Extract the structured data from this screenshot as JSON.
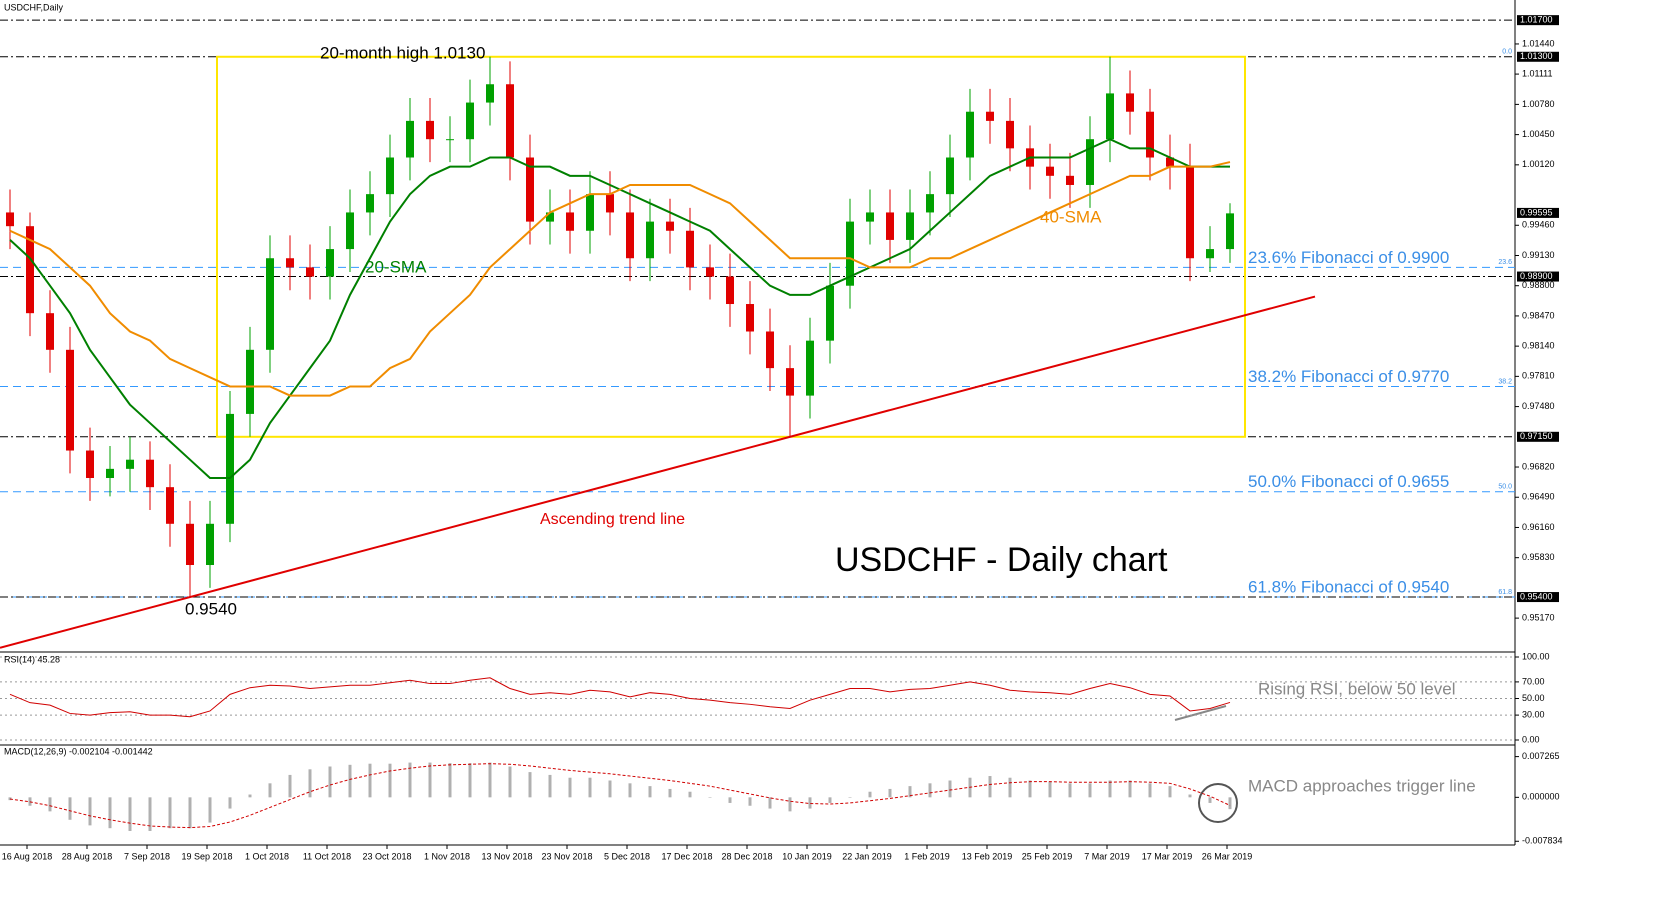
{
  "chart_data": [
    {
      "type": "candlestick",
      "title": "USDCHF,Daily",
      "subtitle": "USDCHF - Daily chart",
      "up_color": "#00a000",
      "down_color": "#e00000",
      "open": [
        0.996,
        0.9945,
        0.985,
        0.981,
        0.97,
        0.967,
        0.968,
        0.969,
        0.966,
        0.962,
        0.9575,
        0.962,
        0.974,
        0.981,
        0.991,
        0.99,
        0.989,
        0.992,
        0.996,
        0.998,
        1.002,
        1.006,
        1.004,
        1.004,
        1.008,
        1.01,
        1.002,
        0.995,
        0.996,
        0.994,
        0.998,
        0.996,
        0.991,
        0.995,
        0.994,
        0.99,
        0.989,
        0.986,
        0.983,
        0.979,
        0.976,
        0.982,
        0.988,
        0.995,
        0.996,
        0.993,
        0.996,
        0.998,
        1.002,
        1.007,
        1.006,
        1.003,
        1.001,
        1.0,
        0.999,
        1.004,
        1.009,
        1.007,
        1.002,
        1.001,
        0.991,
        0.992
      ],
      "high": [
        0.9985,
        0.996,
        0.9875,
        0.9835,
        0.9725,
        0.9705,
        0.9715,
        0.971,
        0.9685,
        0.9645,
        0.9645,
        0.9765,
        0.9835,
        0.9935,
        0.9935,
        0.9925,
        0.9945,
        0.9985,
        1.0005,
        1.0045,
        1.0085,
        1.0085,
        1.0065,
        1.0105,
        1.013,
        1.0125,
        1.0045,
        0.9985,
        0.9985,
        1.0005,
        1.0005,
        0.9985,
        0.9975,
        0.9975,
        0.9965,
        0.9925,
        0.9915,
        0.9885,
        0.9855,
        0.9815,
        0.9845,
        0.9905,
        0.9975,
        0.9985,
        0.9985,
        0.9985,
        1.0005,
        1.0045,
        1.0095,
        1.0095,
        1.0085,
        1.0055,
        1.0035,
        1.0025,
        1.0065,
        1.013,
        1.0115,
        1.0095,
        1.0045,
        1.0035,
        0.9945,
        0.997
      ],
      "low": [
        0.992,
        0.9825,
        0.9785,
        0.9675,
        0.9645,
        0.965,
        0.9655,
        0.9635,
        0.9595,
        0.954,
        0.955,
        0.96,
        0.9715,
        0.9785,
        0.9875,
        0.9865,
        0.9865,
        0.9895,
        0.9935,
        0.9955,
        0.9995,
        1.0015,
        1.0015,
        1.0015,
        1.0055,
        0.9995,
        0.9925,
        0.9925,
        0.9915,
        0.9915,
        0.9935,
        0.9885,
        0.9885,
        0.9915,
        0.9875,
        0.9865,
        0.9835,
        0.9805,
        0.9765,
        0.9715,
        0.9735,
        0.9795,
        0.9855,
        0.9925,
        0.9905,
        0.9905,
        0.9935,
        0.9955,
        0.9995,
        1.0035,
        1.0005,
        0.9985,
        0.9975,
        0.9965,
        0.9965,
        1.0015,
        1.0045,
        0.9995,
        0.9985,
        0.9885,
        0.9895,
        0.9905
      ],
      "close": [
        0.9945,
        0.985,
        0.981,
        0.97,
        0.967,
        0.968,
        0.969,
        0.966,
        0.962,
        0.9575,
        0.962,
        0.974,
        0.981,
        0.991,
        0.99,
        0.989,
        0.992,
        0.996,
        0.998,
        1.002,
        1.006,
        1.004,
        1.004,
        1.008,
        1.01,
        1.002,
        0.995,
        0.996,
        0.994,
        0.998,
        0.996,
        0.991,
        0.995,
        0.994,
        0.99,
        0.989,
        0.986,
        0.983,
        0.979,
        0.976,
        0.982,
        0.988,
        0.995,
        0.996,
        0.993,
        0.996,
        0.998,
        1.002,
        1.007,
        1.006,
        1.003,
        1.001,
        1.0,
        0.999,
        1.004,
        1.009,
        1.007,
        1.002,
        1.001,
        0.991,
        0.992,
        0.9959
      ],
      "series": [
        {
          "name": "20-SMA",
          "color": "#008000",
          "values": [
            0.993,
            0.991,
            0.988,
            0.985,
            0.981,
            0.978,
            0.975,
            0.973,
            0.971,
            0.969,
            0.967,
            0.967,
            0.969,
            0.973,
            0.976,
            0.979,
            0.982,
            0.987,
            0.991,
            0.995,
            0.998,
            1.0,
            1.001,
            1.001,
            1.002,
            1.002,
            1.001,
            1.001,
            1.0,
            1.0,
            0.999,
            0.998,
            0.997,
            0.996,
            0.995,
            0.994,
            0.992,
            0.99,
            0.988,
            0.987,
            0.987,
            0.988,
            0.989,
            0.99,
            0.991,
            0.992,
            0.994,
            0.996,
            0.998,
            1.0,
            1.001,
            1.002,
            1.002,
            1.002,
            1.003,
            1.004,
            1.003,
            1.003,
            1.002,
            1.001,
            1.001,
            1.001
          ]
        },
        {
          "name": "40-SMA",
          "color": "#f08c00",
          "values": [
            0.994,
            0.993,
            0.992,
            0.99,
            0.988,
            0.985,
            0.983,
            0.982,
            0.98,
            0.979,
            0.978,
            0.977,
            0.977,
            0.977,
            0.976,
            0.976,
            0.976,
            0.977,
            0.977,
            0.979,
            0.98,
            0.983,
            0.985,
            0.987,
            0.99,
            0.992,
            0.994,
            0.996,
            0.997,
            0.998,
            0.998,
            0.999,
            0.999,
            0.999,
            0.999,
            0.998,
            0.997,
            0.995,
            0.993,
            0.991,
            0.991,
            0.991,
            0.991,
            0.99,
            0.99,
            0.99,
            0.991,
            0.991,
            0.992,
            0.993,
            0.994,
            0.995,
            0.996,
            0.997,
            0.998,
            0.999,
            1.0,
            1.0,
            1.001,
            1.001,
            1.001,
            1.0015
          ]
        }
      ],
      "ylim": [
        0.948,
        1.0192
      ],
      "yticks": [
        {
          "value": 1.0144,
          "label": "1.01440"
        },
        {
          "value": 1.01111,
          "label": "1.01111"
        },
        {
          "value": 1.0078,
          "label": "1.00780"
        },
        {
          "value": 1.0045,
          "label": "1.00450"
        },
        {
          "value": 1.0012,
          "label": "1.00120"
        },
        {
          "value": 0.9946,
          "label": "0.99460"
        },
        {
          "value": 0.9913,
          "label": "0.99130"
        },
        {
          "value": 0.988,
          "label": "0.98800"
        },
        {
          "value": 0.9847,
          "label": "0.98470"
        },
        {
          "value": 0.9814,
          "label": "0.98140"
        },
        {
          "value": 0.9781,
          "label": "0.97810"
        },
        {
          "value": 0.9748,
          "label": "0.97480"
        },
        {
          "value": 0.9682,
          "label": "0.96820"
        },
        {
          "value": 0.9649,
          "label": "0.96490"
        },
        {
          "value": 0.9616,
          "label": "0.96160"
        },
        {
          "value": 0.9583,
          "label": "0.95830"
        },
        {
          "value": 0.9517,
          "label": "0.95170"
        }
      ],
      "hlines": [
        {
          "value": 1.017,
          "label": "1.01700"
        },
        {
          "value": 1.013,
          "label": "1.01300"
        },
        {
          "value": 0.989,
          "label": "0.98900"
        },
        {
          "value": 0.9715,
          "label": "0.97150"
        },
        {
          "value": 0.954,
          "label": "0.95400"
        }
      ],
      "last_price": {
        "value": 0.99595,
        "label": "0.99595"
      },
      "fibonacci": [
        {
          "value": 1.013,
          "tag": "0.0"
        },
        {
          "value": 0.99,
          "tag": "23.6",
          "label": "23.6% Fibonacci of 0.9900"
        },
        {
          "value": 0.977,
          "tag": "38.2",
          "label": "38.2% Fibonacci of 0.9770"
        },
        {
          "value": 0.9655,
          "tag": "50.0",
          "label": "50.0% Fibonacci of 0.9655"
        },
        {
          "value": 0.954,
          "tag": "61.8",
          "label": "61.8% Fibonacci of 0.9540"
        }
      ],
      "range_box": {
        "top": 1.013,
        "bottom": 0.9715
      },
      "trend_line": {
        "label": "Ascending trend line",
        "anchors": [
          0.954,
          0.9715
        ]
      },
      "annotations": [
        "20-month high 1.0130",
        "0.9540"
      ],
      "xticks": [
        "16 Aug 2018",
        "28 Aug 2018",
        "7 Sep 2018",
        "19 Sep 2018",
        "1 Oct 2018",
        "11 Oct 2018",
        "23 Oct 2018",
        "1 Nov 2018",
        "13 Nov 2018",
        "23 Nov 2018",
        "5 Dec 2018",
        "17 Dec 2018",
        "28 Dec 2018",
        "10 Jan 2019",
        "22 Jan 2019",
        "1 Feb 2019",
        "13 Feb 2019",
        "25 Feb 2019",
        "7 Mar 2019",
        "17 Mar 2019",
        "26 Mar 2019"
      ]
    },
    {
      "type": "line",
      "title": "RSI(14) 45.28",
      "color": "#d00000",
      "annotation": "Rising RSI, below 50 level",
      "values": [
        55,
        45,
        42,
        32,
        30,
        33,
        34,
        30,
        30,
        28,
        35,
        55,
        63,
        66,
        65,
        62,
        64,
        66,
        66,
        69,
        72,
        68,
        68,
        72,
        75,
        62,
        55,
        57,
        55,
        60,
        58,
        52,
        57,
        55,
        50,
        48,
        45,
        43,
        40,
        38,
        48,
        55,
        62,
        62,
        58,
        61,
        62,
        66,
        70,
        66,
        60,
        58,
        57,
        55,
        62,
        68,
        63,
        55,
        53,
        35,
        38,
        45.28
      ],
      "ylim": [
        0,
        100
      ],
      "yticks": [
        {
          "value": 100,
          "label": "100.00"
        },
        {
          "value": 70,
          "label": "70.00"
        },
        {
          "value": 50,
          "label": "50.00"
        },
        {
          "value": 30,
          "label": "30.00"
        },
        {
          "value": 0,
          "label": "0.00"
        }
      ]
    },
    {
      "type": "macd",
      "title": "MACD(12,26,9) -0.002104 -0.001442",
      "annotation": "MACD approaches trigger line",
      "histogram_color": "#b0b0b0",
      "signal_color": "#d00000",
      "values": [
        -0.0005,
        -0.0015,
        -0.0025,
        -0.004,
        -0.005,
        -0.0055,
        -0.006,
        -0.006,
        -0.0055,
        -0.0055,
        -0.0045,
        -0.002,
        0.0005,
        0.0025,
        0.004,
        0.005,
        0.0055,
        0.0058,
        0.006,
        0.006,
        0.0062,
        0.0062,
        0.0061,
        0.0061,
        0.0062,
        0.0055,
        0.0045,
        0.004,
        0.0035,
        0.0035,
        0.003,
        0.0025,
        0.002,
        0.0015,
        0.001,
        0,
        -0.001,
        -0.0015,
        -0.002,
        -0.0025,
        -0.002,
        -0.001,
        0,
        0.001,
        0.0015,
        0.002,
        0.0025,
        0.003,
        0.0035,
        0.0038,
        0.0035,
        0.003,
        0.0028,
        0.0025,
        0.0025,
        0.003,
        0.003,
        0.0025,
        0.002,
        0.0005,
        -0.001,
        -0.002104
      ],
      "signal": [
        -0.0003,
        -0.0008,
        -0.0015,
        -0.0024,
        -0.0033,
        -0.004,
        -0.0046,
        -0.0051,
        -0.0053,
        -0.0054,
        -0.0052,
        -0.0044,
        -0.0032,
        -0.0018,
        -0.0004,
        0.001,
        0.0022,
        0.0032,
        0.004,
        0.0047,
        0.0052,
        0.0056,
        0.0058,
        0.0059,
        0.006,
        0.0059,
        0.0056,
        0.0052,
        0.0048,
        0.0045,
        0.0042,
        0.0038,
        0.0034,
        0.003,
        0.0025,
        0.002,
        0.0013,
        0.0006,
        -0.0001,
        -0.0007,
        -0.0011,
        -0.0012,
        -0.001,
        -0.0006,
        -0.0002,
        0.0003,
        0.0008,
        0.0013,
        0.0018,
        0.0023,
        0.0026,
        0.0028,
        0.0028,
        0.0027,
        0.0027,
        0.0027,
        0.0028,
        0.0027,
        0.0025,
        0.0015,
        0.0002,
        -0.001442
      ],
      "ylim": [
        -0.0085,
        0.0088
      ],
      "yticks": [
        {
          "value": 0.007265,
          "label": "0.007265"
        },
        {
          "value": 0,
          "label": "0.000000"
        },
        {
          "value": -0.007834,
          "label": "-0.007834"
        }
      ]
    }
  ]
}
